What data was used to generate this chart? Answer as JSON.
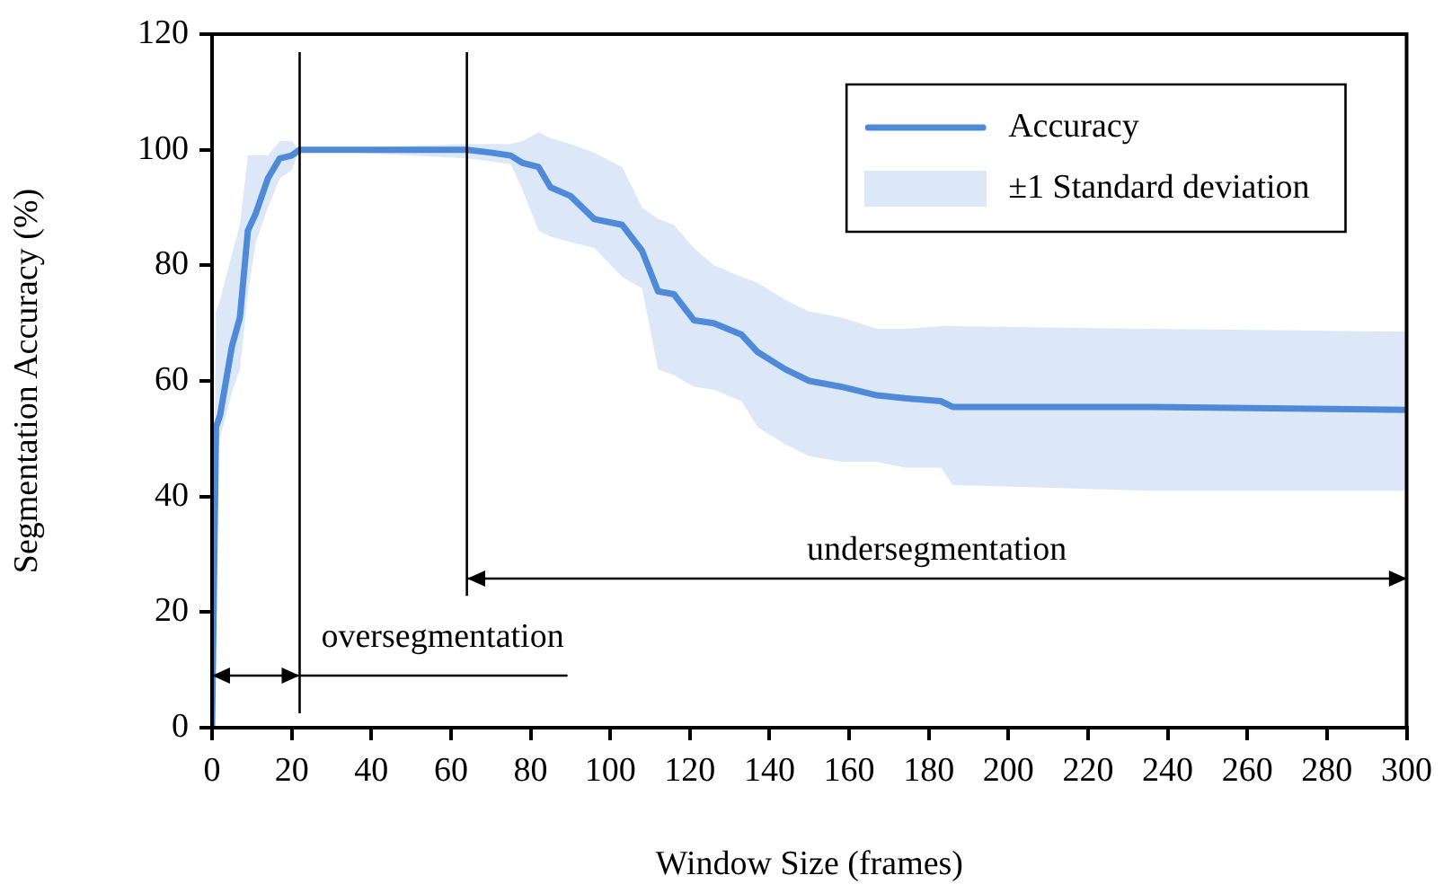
{
  "chart_data": {
    "type": "line",
    "xlabel": "Window Size (frames)",
    "ylabel": "Segmentation Accuracy (%)",
    "x": [
      0,
      1,
      2,
      5,
      7,
      9,
      11,
      14,
      17,
      20,
      22,
      64,
      70,
      75,
      78,
      82,
      85,
      90,
      96,
      103,
      108,
      112,
      116,
      121,
      126,
      133,
      137,
      144,
      150,
      158,
      167,
      174,
      183,
      186,
      236,
      300
    ],
    "series": [
      {
        "name": "Accuracy",
        "color": "#4f8ad8",
        "values": [
          0,
          52,
          54,
          66,
          71,
          86,
          89,
          95,
          98.5,
          99,
          100,
          100,
          99.5,
          99,
          97.7,
          97,
          93.5,
          92,
          88,
          87,
          82.5,
          75.5,
          75,
          70.5,
          70,
          68,
          65,
          62,
          60,
          59,
          57.5,
          57,
          56.5,
          55.5,
          55.5,
          55
        ],
        "upper": [
          0,
          72,
          74,
          82,
          87,
          99,
          99,
          99,
          101.5,
          101.5,
          100,
          101,
          101,
          101,
          101.5,
          103,
          102,
          101,
          99.5,
          97,
          90,
          88,
          87,
          83,
          80,
          78,
          77,
          74,
          72,
          71,
          69,
          69,
          69.5,
          69.5,
          69,
          68.5
        ],
        "lower": [
          0,
          42,
          50,
          58,
          62,
          75,
          84,
          90,
          95,
          96.5,
          100,
          98.5,
          98,
          97.5,
          93,
          86,
          85,
          84,
          83,
          78,
          76,
          62,
          61,
          59,
          58.5,
          56.5,
          52,
          49,
          47,
          46,
          46,
          45,
          45,
          42,
          41,
          41
        ]
      }
    ],
    "xlim": [
      0,
      300
    ],
    "xticks": [
      0,
      20,
      40,
      60,
      80,
      100,
      120,
      140,
      160,
      180,
      200,
      220,
      240,
      260,
      280,
      300
    ],
    "ylim": [
      0,
      120
    ],
    "yticks": [
      0,
      20,
      40,
      60,
      80,
      100,
      120
    ],
    "ref_lines": [
      {
        "axis": "x",
        "value": 22,
        "color": "#000000"
      },
      {
        "axis": "x",
        "value": 64,
        "color": "#000000"
      }
    ],
    "annotations": [
      {
        "text": "oversegmentation",
        "x": 22,
        "y": 9
      },
      "undersegmentation",
      "±1 Standard deviation"
    ],
    "grid": false,
    "legend": "top right",
    "marker": "none",
    "line_style": "solid"
  }
}
